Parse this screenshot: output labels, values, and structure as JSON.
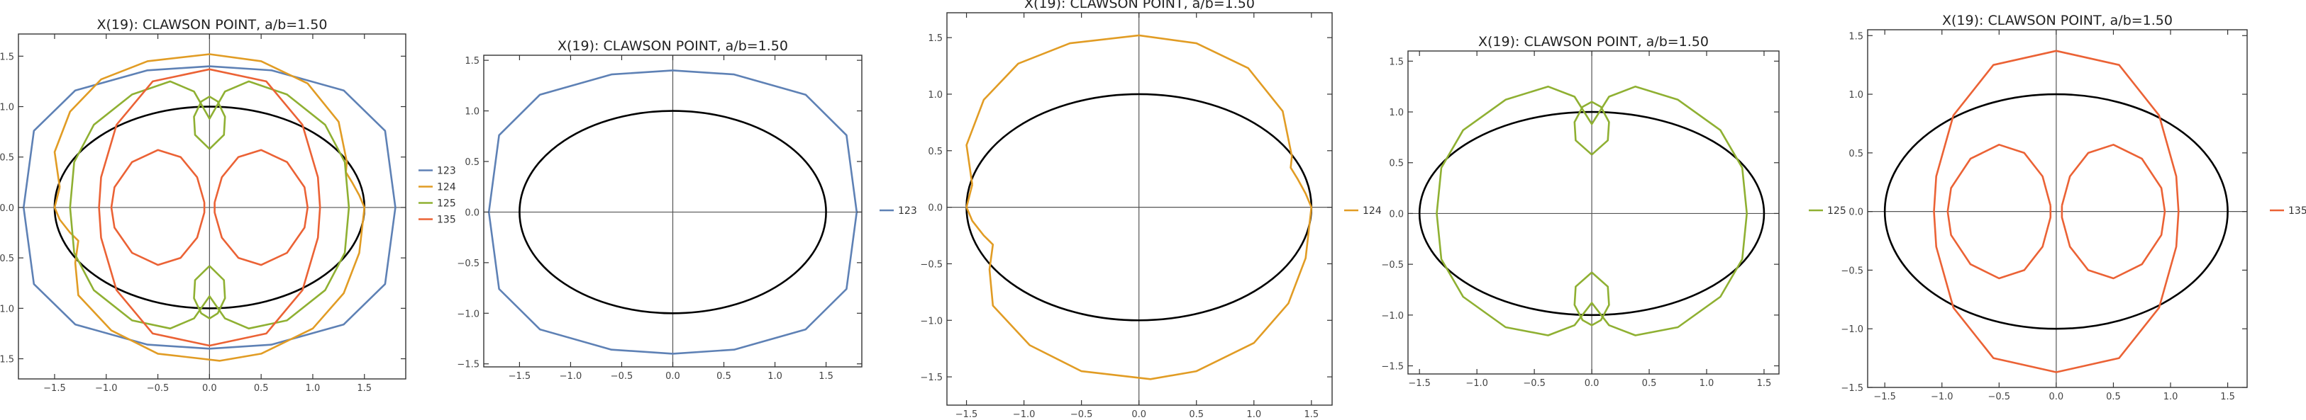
{
  "chart_data": [
    {
      "type": "line",
      "title": "X(19): CLAWSON POINT, a/b=1.50",
      "xlabel": "",
      "ylabel": "",
      "xlim": [
        -1.85,
        1.9
      ],
      "ylim": [
        -1.7,
        1.72
      ],
      "x_ticks": [
        -1.5,
        -1.0,
        -0.5,
        0.0,
        0.5,
        1.0,
        1.5
      ],
      "y_ticks": [
        -1.5,
        -1.0,
        -0.5,
        0.0,
        0.5,
        1.0,
        1.5
      ],
      "reference_ellipse": {
        "a": 1.5,
        "b": 1.0,
        "color": "#000000"
      },
      "legend_position": "right",
      "series": [
        {
          "name": "123",
          "color": "#5E81B5",
          "curve": "c123"
        },
        {
          "name": "124",
          "color": "#E19C24",
          "curve": "c124"
        },
        {
          "name": "125",
          "color": "#8FB032",
          "curve": "c125"
        },
        {
          "name": "135",
          "color": "#EB6235",
          "curve": "c135"
        }
      ]
    },
    {
      "type": "line",
      "title": "X(19): CLAWSON POINT, a/b=1.50",
      "xlabel": "",
      "ylabel": "",
      "xlim": [
        -1.85,
        1.85
      ],
      "ylim": [
        -1.53,
        1.55
      ],
      "x_ticks": [
        -1.5,
        -1.0,
        -0.5,
        0.0,
        0.5,
        1.0,
        1.5
      ],
      "y_ticks": [
        -1.5,
        -1.0,
        -0.5,
        0.0,
        0.5,
        1.0,
        1.5
      ],
      "reference_ellipse": {
        "a": 1.5,
        "b": 1.0,
        "color": "#000000"
      },
      "legend_position": "right",
      "series": [
        {
          "name": "123",
          "color": "#5E81B5",
          "curve": "c123"
        }
      ]
    },
    {
      "type": "line",
      "title": "X(19): CLAWSON POINT, a/b=1.50",
      "xlabel": "",
      "ylabel": "",
      "xlim": [
        -1.67,
        1.68
      ],
      "ylim": [
        -1.75,
        1.72
      ],
      "x_ticks": [
        -1.5,
        -1.0,
        -0.5,
        0.0,
        0.5,
        1.0,
        1.5
      ],
      "y_ticks": [
        -1.5,
        -1.0,
        -0.5,
        0.0,
        0.5,
        1.0,
        1.5
      ],
      "reference_ellipse": {
        "a": 1.5,
        "b": 1.0,
        "color": "#000000"
      },
      "legend_position": "right",
      "series": [
        {
          "name": "124",
          "color": "#E19C24",
          "curve": "c124"
        }
      ]
    },
    {
      "type": "line",
      "title": "X(19): CLAWSON POINT, a/b=1.50",
      "xlabel": "",
      "ylabel": "",
      "xlim": [
        -1.6,
        1.63
      ],
      "ylim": [
        -1.58,
        1.6
      ],
      "x_ticks": [
        -1.5,
        -1.0,
        -0.5,
        0.0,
        0.5,
        1.0,
        1.5
      ],
      "y_ticks": [
        -1.5,
        -1.0,
        -0.5,
        0.0,
        0.5,
        1.0,
        1.5
      ],
      "reference_ellipse": {
        "a": 1.5,
        "b": 1.0,
        "color": "#000000"
      },
      "legend_position": "right",
      "series": [
        {
          "name": "125",
          "color": "#8FB032",
          "curve": "c125"
        }
      ]
    },
    {
      "type": "line",
      "title": "X(19): CLAWSON POINT, a/b=1.50",
      "xlabel": "",
      "ylabel": "",
      "xlim": [
        -1.65,
        1.67
      ],
      "ylim": [
        -1.5,
        1.55
      ],
      "x_ticks": [
        -1.5,
        -1.0,
        -0.5,
        0.0,
        0.5,
        1.0,
        1.5
      ],
      "y_ticks": [
        -1.5,
        -1.0,
        -0.5,
        0.0,
        0.5,
        1.0,
        1.5
      ],
      "reference_ellipse": {
        "a": 1.5,
        "b": 1.0,
        "color": "#000000"
      },
      "legend_position": "right",
      "series": [
        {
          "name": "135",
          "color": "#EB6235",
          "curve": "c135"
        }
      ]
    }
  ],
  "curves": {
    "c123": [
      [
        [
          1.8,
          0
        ],
        [
          1.7,
          0.76
        ],
        [
          1.3,
          1.16
        ],
        [
          0.6,
          1.36
        ],
        [
          0,
          1.4
        ],
        [
          -0.6,
          1.36
        ],
        [
          -1.3,
          1.16
        ],
        [
          -1.7,
          0.76
        ],
        [
          -1.8,
          0
        ],
        [
          -1.7,
          -0.76
        ],
        [
          -1.3,
          -1.16
        ],
        [
          -0.6,
          -1.36
        ],
        [
          0,
          -1.4
        ],
        [
          0.6,
          -1.36
        ],
        [
          1.3,
          -1.16
        ],
        [
          1.7,
          -0.76
        ],
        [
          1.8,
          0
        ]
      ]
    ],
    "c124": [
      [
        [
          -1.45,
          0.2
        ],
        [
          -1.5,
          0.55
        ],
        [
          -1.35,
          0.95
        ],
        [
          -1.05,
          1.27
        ],
        [
          -0.6,
          1.45
        ],
        [
          0,
          1.52
        ],
        [
          0.5,
          1.45
        ],
        [
          0.95,
          1.23
        ],
        [
          1.25,
          0.85
        ],
        [
          1.33,
          0.45
        ],
        [
          1.32,
          0.35
        ],
        [
          1.38,
          0.25
        ],
        [
          1.45,
          0.12
        ],
        [
          1.5,
          0
        ],
        [
          1.45,
          -0.45
        ],
        [
          1.3,
          -0.85
        ],
        [
          1.0,
          -1.2
        ],
        [
          0.5,
          -1.45
        ],
        [
          0.1,
          -1.52
        ],
        [
          -0.5,
          -1.45
        ],
        [
          -0.95,
          -1.22
        ],
        [
          -1.27,
          -0.87
        ],
        [
          -1.3,
          -0.55
        ],
        [
          -1.27,
          -0.33
        ],
        [
          -1.35,
          -0.25
        ],
        [
          -1.45,
          -0.12
        ],
        [
          -1.5,
          0
        ],
        [
          -1.45,
          0.2
        ]
      ]
    ],
    "c125": [
      [
        [
          1.35,
          0
        ],
        [
          1.31,
          -0.45
        ],
        [
          1.12,
          -0.82
        ],
        [
          0.75,
          -1.12
        ],
        [
          0.38,
          -1.2
        ],
        [
          0.15,
          -1.1
        ],
        [
          0,
          -0.88
        ],
        [
          -0.15,
          -1.1
        ],
        [
          -0.38,
          -1.2
        ],
        [
          -0.75,
          -1.12
        ],
        [
          -1.12,
          -0.82
        ],
        [
          -1.31,
          -0.45
        ],
        [
          -1.35,
          0
        ],
        [
          -1.31,
          0.45
        ],
        [
          -1.12,
          0.82
        ],
        [
          -0.75,
          1.12
        ],
        [
          -0.38,
          1.25
        ],
        [
          -0.15,
          1.15
        ],
        [
          0,
          0.88
        ],
        [
          0.15,
          1.15
        ],
        [
          0.38,
          1.25
        ],
        [
          0.75,
          1.12
        ],
        [
          1.12,
          0.82
        ],
        [
          1.31,
          0.45
        ],
        [
          1.35,
          0
        ]
      ],
      [
        [
          0,
          0.58
        ],
        [
          0.14,
          0.72
        ],
        [
          0.15,
          0.9
        ],
        [
          0.08,
          1.05
        ],
        [
          0,
          1.1
        ],
        [
          -0.08,
          1.05
        ],
        [
          -0.15,
          0.9
        ],
        [
          -0.14,
          0.72
        ],
        [
          0,
          0.58
        ]
      ],
      [
        [
          0,
          -0.58
        ],
        [
          0.14,
          -0.72
        ],
        [
          0.15,
          -0.9
        ],
        [
          0.08,
          -1.05
        ],
        [
          0,
          -1.1
        ],
        [
          -0.08,
          -1.05
        ],
        [
          -0.15,
          -0.9
        ],
        [
          -0.14,
          -0.72
        ],
        [
          0,
          -0.58
        ]
      ]
    ],
    "c135": [
      [
        [
          0,
          1.37
        ],
        [
          0.55,
          1.25
        ],
        [
          0.9,
          0.82
        ],
        [
          1.05,
          0.3
        ],
        [
          1.07,
          0
        ],
        [
          1.05,
          -0.3
        ],
        [
          0.9,
          -0.82
        ],
        [
          0.55,
          -1.25
        ],
        [
          0,
          -1.37
        ],
        [
          -0.55,
          -1.25
        ],
        [
          -0.9,
          -0.82
        ],
        [
          -1.05,
          -0.3
        ],
        [
          -1.07,
          0
        ],
        [
          -1.05,
          0.3
        ],
        [
          -0.9,
          0.82
        ],
        [
          -0.55,
          1.25
        ],
        [
          0,
          1.37
        ]
      ],
      [
        [
          0.05,
          0.05
        ],
        [
          0.12,
          0.3
        ],
        [
          0.28,
          0.5
        ],
        [
          0.5,
          0.57
        ],
        [
          0.75,
          0.45
        ],
        [
          0.92,
          0.2
        ],
        [
          0.95,
          0
        ],
        [
          0.92,
          -0.2
        ],
        [
          0.75,
          -0.45
        ],
        [
          0.5,
          -0.57
        ],
        [
          0.28,
          -0.5
        ],
        [
          0.12,
          -0.3
        ],
        [
          0.05,
          -0.05
        ],
        [
          0.05,
          0.05
        ]
      ],
      [
        [
          -0.05,
          0.05
        ],
        [
          -0.12,
          0.3
        ],
        [
          -0.28,
          0.5
        ],
        [
          -0.5,
          0.57
        ],
        [
          -0.75,
          0.45
        ],
        [
          -0.92,
          0.2
        ],
        [
          -0.95,
          0
        ],
        [
          -0.92,
          -0.2
        ],
        [
          -0.75,
          -0.45
        ],
        [
          -0.5,
          -0.57
        ],
        [
          -0.28,
          -0.5
        ],
        [
          -0.12,
          -0.3
        ],
        [
          -0.05,
          -0.05
        ],
        [
          -0.05,
          0.05
        ]
      ]
    ]
  }
}
